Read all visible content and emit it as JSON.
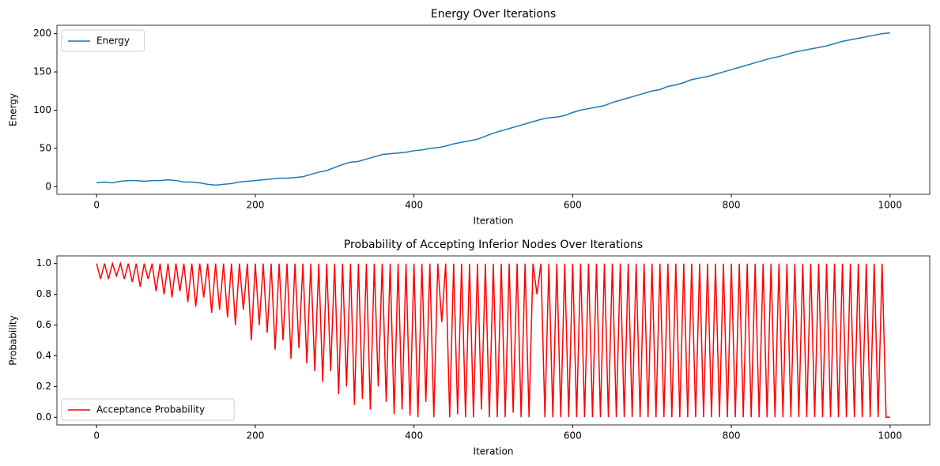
{
  "chart_data": [
    {
      "type": "line",
      "title": "Energy Over Iterations",
      "xlabel": "Iteration",
      "ylabel": "Energy",
      "x": [
        0,
        10,
        20,
        30,
        40,
        50,
        60,
        70,
        80,
        90,
        100,
        110,
        120,
        130,
        140,
        150,
        160,
        170,
        180,
        190,
        200,
        210,
        220,
        230,
        240,
        250,
        260,
        270,
        280,
        290,
        300,
        310,
        320,
        330,
        340,
        350,
        360,
        370,
        380,
        390,
        400,
        410,
        420,
        430,
        440,
        450,
        460,
        470,
        480,
        490,
        500,
        510,
        520,
        530,
        540,
        550,
        560,
        570,
        580,
        590,
        600,
        610,
        620,
        630,
        640,
        650,
        660,
        670,
        680,
        690,
        700,
        710,
        720,
        730,
        740,
        750,
        760,
        770,
        780,
        790,
        800,
        810,
        820,
        830,
        840,
        850,
        860,
        870,
        880,
        890,
        900,
        910,
        920,
        930,
        940,
        950,
        960,
        970,
        980,
        990,
        1000
      ],
      "series": [
        {
          "name": "Energy",
          "color": "#1f77b4",
          "values": [
            5,
            6,
            5,
            7,
            8,
            8,
            7,
            8,
            8,
            9,
            8,
            6,
            6,
            5,
            3,
            2,
            3,
            4,
            6,
            7,
            8,
            9,
            10,
            11,
            11,
            12,
            13,
            16,
            19,
            21,
            25,
            29,
            32,
            33,
            36,
            39,
            42,
            43,
            44,
            45,
            47,
            48,
            50,
            51,
            53,
            56,
            58,
            60,
            62,
            66,
            70,
            73,
            76,
            79,
            82,
            85,
            88,
            90,
            91,
            93,
            97,
            100,
            102,
            104,
            106,
            110,
            113,
            116,
            119,
            122,
            125,
            127,
            131,
            133,
            136,
            140,
            142,
            144,
            147,
            150,
            153,
            156,
            159,
            162,
            165,
            168,
            170,
            173,
            176,
            178,
            180,
            182,
            184,
            187,
            190,
            192,
            194,
            196,
            198,
            200,
            201
          ]
        }
      ],
      "xlim": [
        -50,
        1050
      ],
      "ylim": [
        -10,
        211
      ],
      "xticks": [
        0,
        200,
        400,
        600,
        800,
        1000
      ],
      "yticks": [
        0,
        50,
        100,
        150,
        200
      ],
      "legend": "upper left"
    },
    {
      "type": "line",
      "title": "Probability of Accepting Inferior Nodes Over Iterations",
      "xlabel": "Iteration",
      "ylabel": "Probability",
      "x": [
        0,
        5,
        10,
        15,
        20,
        25,
        30,
        35,
        40,
        45,
        50,
        55,
        60,
        65,
        70,
        75,
        80,
        85,
        90,
        95,
        100,
        105,
        110,
        115,
        120,
        125,
        130,
        135,
        140,
        145,
        150,
        155,
        160,
        165,
        170,
        175,
        180,
        185,
        190,
        195,
        200,
        205,
        210,
        215,
        220,
        225,
        230,
        235,
        240,
        245,
        250,
        255,
        260,
        265,
        270,
        275,
        280,
        285,
        290,
        295,
        300,
        305,
        310,
        315,
        320,
        325,
        330,
        335,
        340,
        345,
        350,
        355,
        360,
        365,
        370,
        375,
        380,
        385,
        390,
        395,
        400,
        405,
        410,
        415,
        420,
        425,
        430,
        435,
        440,
        445,
        450,
        455,
        460,
        465,
        470,
        475,
        480,
        485,
        490,
        495,
        500,
        505,
        510,
        515,
        520,
        525,
        530,
        535,
        540,
        545,
        550,
        555,
        560,
        565,
        570,
        575,
        580,
        585,
        590,
        595,
        600,
        605,
        610,
        615,
        620,
        625,
        630,
        635,
        640,
        645,
        650,
        655,
        660,
        665,
        670,
        675,
        680,
        685,
        690,
        695,
        700,
        705,
        710,
        715,
        720,
        725,
        730,
        735,
        740,
        745,
        750,
        755,
        760,
        765,
        770,
        775,
        780,
        785,
        790,
        795,
        800,
        805,
        810,
        815,
        820,
        825,
        830,
        835,
        840,
        845,
        850,
        855,
        860,
        865,
        870,
        875,
        880,
        885,
        890,
        895,
        900,
        905,
        910,
        915,
        920,
        925,
        930,
        935,
        940,
        945,
        950,
        955,
        960,
        965,
        970,
        975,
        980,
        985,
        990,
        995,
        1000
      ],
      "series": [
        {
          "name": "Acceptance Probability",
          "color": "#ff0000",
          "values": [
            1,
            0.9,
            1,
            0.9,
            1,
            0.92,
            1,
            0.9,
            1,
            0.88,
            1,
            0.85,
            1,
            0.9,
            1,
            0.82,
            1,
            0.8,
            1,
            0.78,
            1,
            0.82,
            1,
            0.75,
            1,
            0.72,
            1,
            0.78,
            1,
            0.68,
            1,
            0.7,
            1,
            0.65,
            1,
            0.6,
            1,
            0.7,
            1,
            0.5,
            1,
            0.6,
            1,
            0.55,
            1,
            0.44,
            1,
            0.5,
            1,
            0.38,
            1,
            0.45,
            1,
            0.35,
            1,
            0.3,
            1,
            0.23,
            1,
            0.3,
            1,
            0.15,
            1,
            0.2,
            1,
            0.08,
            1,
            0.12,
            1,
            0.05,
            1,
            0.2,
            1,
            0.1,
            1,
            0.02,
            1,
            0.05,
            1,
            0.01,
            1,
            0,
            1,
            0.1,
            1,
            0,
            1,
            0.62,
            1,
            0,
            1,
            0.02,
            1,
            0,
            1,
            0,
            1,
            0.05,
            1,
            0,
            1,
            0,
            1,
            0,
            1,
            0.03,
            1,
            0,
            1,
            0,
            1,
            0.8,
            1,
            0,
            1,
            0,
            1,
            0,
            1,
            0,
            1,
            0,
            1,
            0,
            1,
            0,
            1,
            0,
            1,
            0,
            1,
            0,
            1,
            0,
            1,
            0,
            1,
            0,
            1,
            0,
            1,
            0,
            1,
            0,
            1,
            0,
            1,
            0,
            1,
            0,
            1,
            0,
            1,
            0,
            1,
            0,
            1,
            0,
            1,
            0,
            1,
            0,
            1,
            0,
            1,
            0,
            1,
            0,
            1,
            0,
            1,
            0,
            1,
            0,
            1,
            0,
            1,
            0,
            1,
            0,
            1,
            0,
            1,
            0,
            1,
            0,
            1,
            0,
            1,
            0,
            1,
            0,
            1,
            0,
            1,
            0,
            1,
            0,
            1,
            0,
            0
          ]
        }
      ],
      "xlim": [
        -50,
        1050
      ],
      "ylim": [
        -0.05,
        1.05
      ],
      "xticks": [
        0,
        200,
        400,
        600,
        800,
        1000
      ],
      "yticks": [
        {
          "value": 0,
          "label": "0.0"
        },
        0.2,
        0.4,
        0.6,
        0.8,
        {
          "value": 1,
          "label": "1.0"
        }
      ],
      "legend": "lower left"
    }
  ]
}
